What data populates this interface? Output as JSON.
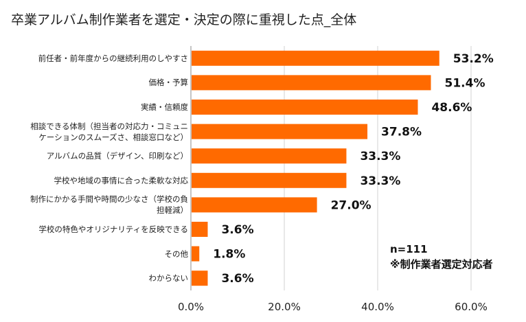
{
  "chart_data": {
    "type": "bar",
    "orientation": "horizontal",
    "title": "卒業アルバム制作業者を選定・決定の際に重視した点_全体",
    "categories": [
      "前任者・前年度からの継続利用のしやすさ",
      "価格・予算",
      "実績・信頼度",
      "相談できる体制（担当者の対応力・コミュニケーションのスムーズさ、相談窓口など）",
      "アルバムの品質（デザイン、印刷など）",
      "学校や地域の事情に合った柔軟な対応",
      "制作にかかる手間や時間の少なさ（学校の負担軽減）",
      "学校の特色やオリジナリティを反映できる",
      "その他",
      "わからない"
    ],
    "display_lines": [
      [
        "前任者・前年度からの継続利用のしやすさ"
      ],
      [
        "価格・予算"
      ],
      [
        "実績・信頼度"
      ],
      [
        "相談できる体制（担当者の対応力・コミュニ",
        "ケーションのスムーズさ、相談窓口など）"
      ],
      [
        "アルバムの品質（デザイン、印刷など）"
      ],
      [
        "学校や地域の事情に合った柔軟な対応"
      ],
      [
        "制作にかかる手間や時間の少なさ（学校の負",
        "担軽減）"
      ],
      [
        "学校の特色やオリジナリティを反映できる"
      ],
      [
        "その他"
      ],
      [
        "わからない"
      ]
    ],
    "values": [
      53.2,
      51.4,
      48.6,
      37.8,
      33.3,
      33.3,
      27.0,
      3.6,
      1.8,
      3.6
    ],
    "value_labels": [
      "53.2%",
      "51.4%",
      "48.6%",
      "37.8%",
      "33.3%",
      "33.3%",
      "27.0%",
      "3.6%",
      "1.8%",
      "3.6%"
    ],
    "xlim": [
      0,
      60
    ],
    "xticks": [
      0,
      20,
      40,
      60
    ],
    "xtick_labels": [
      "0.0%",
      "20.0%",
      "40.0%",
      "60.0%"
    ],
    "grid": true,
    "bar_color": "#FF6A00",
    "grid_color": "#D0D0D0"
  },
  "note": {
    "sample_size": "n=111",
    "target": "※制作業者選定対応者"
  }
}
